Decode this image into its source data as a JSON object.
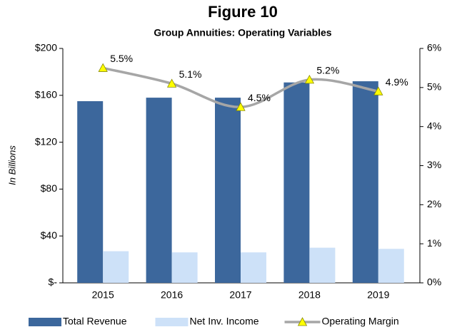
{
  "chart_data": {
    "type": "bar",
    "title": "Figure 10",
    "subtitle": "Group Annuities: Operating Variables",
    "ylabel": "In Billions",
    "categories": [
      "2015",
      "2016",
      "2017",
      "2018",
      "2019"
    ],
    "series": [
      {
        "name": "Total Revenue",
        "type": "bar",
        "color": "#3c679c",
        "values": [
          155,
          158,
          158,
          171,
          172
        ]
      },
      {
        "name": "Net Inv. Income",
        "type": "bar",
        "color": "#cde1f8",
        "values": [
          27,
          26,
          26,
          30,
          29
        ]
      },
      {
        "name": "Operating Margin",
        "type": "line",
        "axis": "y2",
        "color": "#a6a6a6",
        "marker_color": "#ffff00",
        "values": [
          5.5,
          5.1,
          4.5,
          5.2,
          4.9
        ],
        "value_labels": [
          "5.5%",
          "5.1%",
          "4.5%",
          "5.2%",
          "4.9%"
        ]
      }
    ],
    "ylim": [
      0,
      200
    ],
    "yticks": [
      {
        "value": 0,
        "label": "$-"
      },
      {
        "value": 40,
        "label": "$40"
      },
      {
        "value": 80,
        "label": "$80"
      },
      {
        "value": 120,
        "label": "$120"
      },
      {
        "value": 160,
        "label": "$160"
      },
      {
        "value": 200,
        "label": "$200"
      }
    ],
    "y2lim": [
      0,
      6
    ],
    "y2ticks": [
      {
        "value": 0,
        "label": "0%"
      },
      {
        "value": 1,
        "label": "1%"
      },
      {
        "value": 2,
        "label": "2%"
      },
      {
        "value": 3,
        "label": "3%"
      },
      {
        "value": 4,
        "label": "4%"
      },
      {
        "value": 5,
        "label": "5%"
      },
      {
        "value": 6,
        "label": "6%"
      }
    ],
    "legend": "bottom"
  }
}
